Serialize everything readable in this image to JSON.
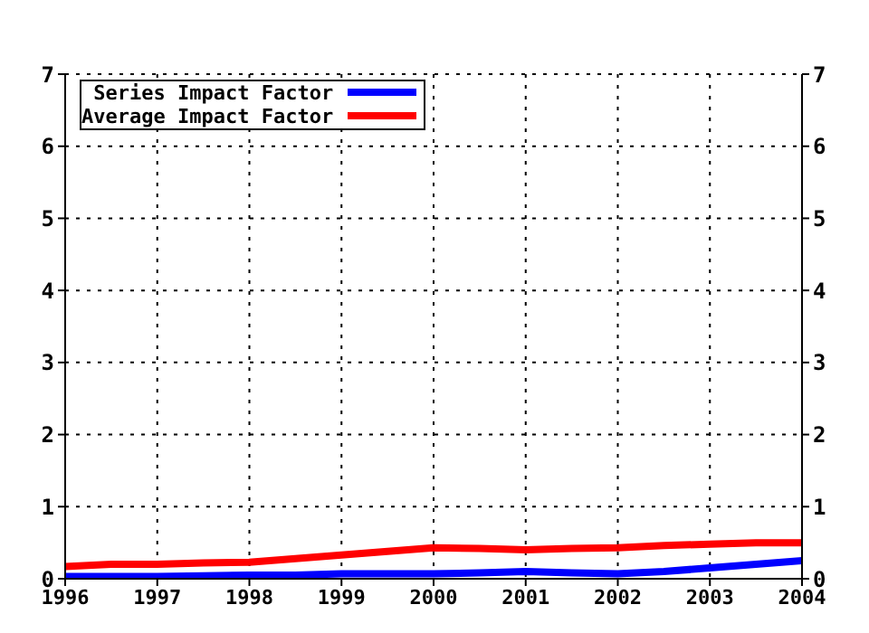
{
  "chart_data": {
    "type": "line",
    "x": [
      1996,
      1996.5,
      1997,
      1997.5,
      1998,
      1998.5,
      1999,
      1999.5,
      2000,
      2000.5,
      2001,
      2001.5,
      2002,
      2002.5,
      2003,
      2003.5,
      2004
    ],
    "series": [
      {
        "name": "Series Impact Factor",
        "color": "#0000ff",
        "values": [
          0.03,
          0.03,
          0.03,
          0.04,
          0.05,
          0.05,
          0.07,
          0.07,
          0.07,
          0.08,
          0.1,
          0.08,
          0.07,
          0.1,
          0.15,
          0.2,
          0.25
        ]
      },
      {
        "name": "Average Impact Factor",
        "color": "#ff0000",
        "values": [
          0.17,
          0.2,
          0.2,
          0.22,
          0.23,
          0.28,
          0.33,
          0.38,
          0.43,
          0.42,
          0.4,
          0.42,
          0.43,
          0.46,
          0.48,
          0.5,
          0.5
        ]
      }
    ],
    "xlim": [
      1996,
      2004
    ],
    "xticks": [
      1996,
      1997,
      1998,
      1999,
      2000,
      2001,
      2002,
      2003,
      2004
    ],
    "ylim": [
      0,
      7
    ],
    "yticks": [
      0,
      1,
      2,
      3,
      4,
      5,
      6,
      7
    ],
    "y2lim": [
      0,
      7
    ],
    "y2ticks": [
      0,
      1,
      2,
      3,
      4,
      5,
      6,
      7
    ],
    "grid": true,
    "legend": "top left",
    "marker": "none",
    "line_style": "solid"
  }
}
